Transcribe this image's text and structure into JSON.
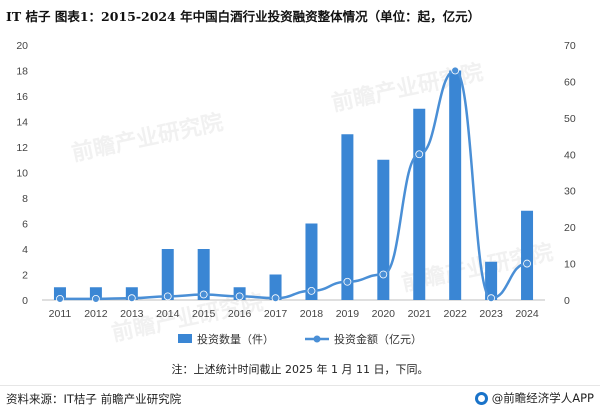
{
  "title": "IT 桔子  图表1：2015-2024 年中国白酒行业投资融资整体情况（单位：起，亿元）",
  "note": "注：上述统计时间截止 2025 年 1 月 11 日，下同。",
  "source": "资料来源：IT桔子 前瞻产业研究院",
  "brand": "@前瞻经济学人APP",
  "watermark": "前瞻产业研究院",
  "colors": {
    "bar": "#3a86d4",
    "line": "#4a8fd6"
  },
  "chart_data": {
    "type": "bar+line",
    "categories": [
      "2011",
      "2012",
      "2013",
      "2014",
      "2015",
      "2016",
      "2017",
      "2018",
      "2019",
      "2020",
      "2021",
      "2022",
      "2023",
      "2024"
    ],
    "series": [
      {
        "name": "投资数量（件）",
        "type": "bar",
        "axis": "left",
        "values": [
          1,
          1,
          1,
          4,
          4,
          1,
          2,
          6,
          13,
          11,
          15,
          18,
          3,
          7
        ]
      },
      {
        "name": "投资金额（亿元）",
        "type": "line",
        "axis": "right",
        "values": [
          0.3,
          0.3,
          0.5,
          1,
          1.5,
          1,
          0.5,
          2.5,
          5,
          7,
          40,
          63,
          0.5,
          10
        ]
      }
    ],
    "left_axis": {
      "min": 0,
      "max": 20,
      "ticks": [
        0,
        2,
        4,
        6,
        8,
        10,
        12,
        14,
        16,
        18,
        20
      ]
    },
    "right_axis": {
      "min": 0,
      "max": 70,
      "ticks": [
        0,
        10,
        20,
        30,
        40,
        50,
        60,
        70
      ]
    },
    "legend_position": "bottom"
  }
}
